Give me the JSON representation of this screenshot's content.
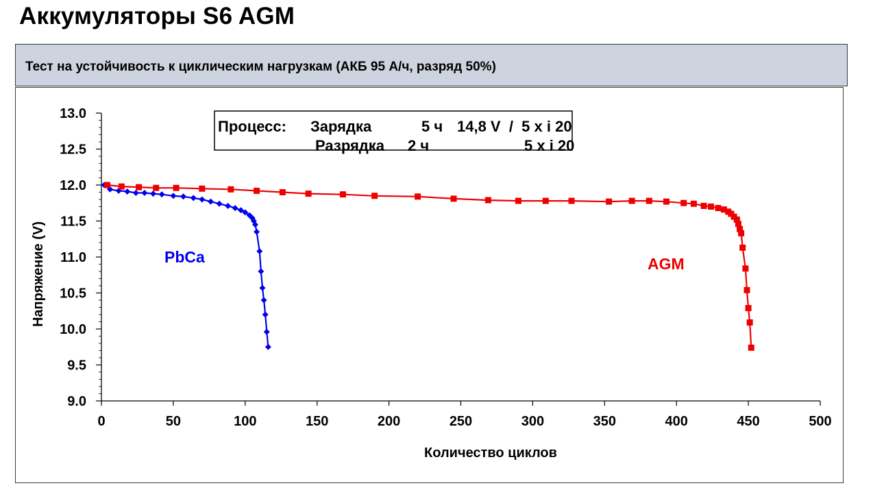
{
  "header": {
    "title": "Аккумуляторы S6 AGM",
    "subtitle": "Тест на устойчивость к циклическим нагрузкам (АКБ 95 А/ч, разряд 50%)"
  },
  "chart_data": {
    "type": "line",
    "xlabel": "Количество циклов",
    "ylabel": "Напряжение (V)",
    "xlim": [
      0,
      500
    ],
    "ylim": [
      9.0,
      13.0
    ],
    "x_ticks": [
      "0",
      "50",
      "100",
      "150",
      "200",
      "250",
      "300",
      "350",
      "400",
      "450",
      "500"
    ],
    "y_ticks": [
      "9.0",
      "9.5",
      "10.0",
      "10.5",
      "11.0",
      "11.5",
      "12.0",
      "12.5",
      "13.0"
    ],
    "grid": false,
    "process_box": {
      "line1": {
        "label": "Процесс:",
        "mode": "Зарядка",
        "time": "5 ч",
        "params": "14,8 V  /  5 x i 20"
      },
      "line2": {
        "mode": "Разрядка",
        "time": "2 ч",
        "params": "5 x i 20"
      }
    },
    "series": [
      {
        "name": "PbCa",
        "color": "#0000ee",
        "marker": "diamond",
        "points": [
          [
            2,
            12.0
          ],
          [
            6,
            11.94
          ],
          [
            12,
            11.92
          ],
          [
            18,
            11.91
          ],
          [
            24,
            11.89
          ],
          [
            30,
            11.89
          ],
          [
            36,
            11.88
          ],
          [
            42,
            11.87
          ],
          [
            50,
            11.85
          ],
          [
            57,
            11.84
          ],
          [
            64,
            11.82
          ],
          [
            70,
            11.8
          ],
          [
            76,
            11.77
          ],
          [
            82,
            11.74
          ],
          [
            88,
            11.71
          ],
          [
            93,
            11.68
          ],
          [
            97,
            11.65
          ],
          [
            100,
            11.62
          ],
          [
            103,
            11.58
          ],
          [
            105,
            11.54
          ],
          [
            106,
            11.5
          ],
          [
            107,
            11.45
          ],
          [
            108,
            11.35
          ],
          [
            110,
            11.08
          ],
          [
            111,
            10.8
          ],
          [
            112,
            10.57
          ],
          [
            113,
            10.4
          ],
          [
            114,
            10.2
          ],
          [
            115,
            9.96
          ],
          [
            116,
            9.75
          ]
        ]
      },
      {
        "name": "AGM",
        "color": "#ee0000",
        "marker": "square",
        "points": [
          [
            4,
            12.0
          ],
          [
            14,
            11.98
          ],
          [
            26,
            11.97
          ],
          [
            38,
            11.96
          ],
          [
            52,
            11.96
          ],
          [
            70,
            11.95
          ],
          [
            90,
            11.94
          ],
          [
            108,
            11.92
          ],
          [
            126,
            11.9
          ],
          [
            144,
            11.88
          ],
          [
            168,
            11.87
          ],
          [
            190,
            11.85
          ],
          [
            220,
            11.84
          ],
          [
            245,
            11.81
          ],
          [
            269,
            11.79
          ],
          [
            290,
            11.78
          ],
          [
            309,
            11.78
          ],
          [
            327,
            11.78
          ],
          [
            353,
            11.77
          ],
          [
            369,
            11.78
          ],
          [
            381,
            11.78
          ],
          [
            393,
            11.77
          ],
          [
            405,
            11.75
          ],
          [
            412,
            11.74
          ],
          [
            419,
            11.71
          ],
          [
            424,
            11.7
          ],
          [
            429,
            11.68
          ],
          [
            433,
            11.66
          ],
          [
            436,
            11.63
          ],
          [
            438,
            11.6
          ],
          [
            440,
            11.56
          ],
          [
            442,
            11.52
          ],
          [
            443,
            11.46
          ],
          [
            444,
            11.39
          ],
          [
            445,
            11.33
          ],
          [
            446,
            11.13
          ],
          [
            448,
            10.84
          ],
          [
            449,
            10.54
          ],
          [
            450,
            10.29
          ],
          [
            451,
            10.09
          ],
          [
            452,
            9.74
          ]
        ]
      }
    ]
  }
}
